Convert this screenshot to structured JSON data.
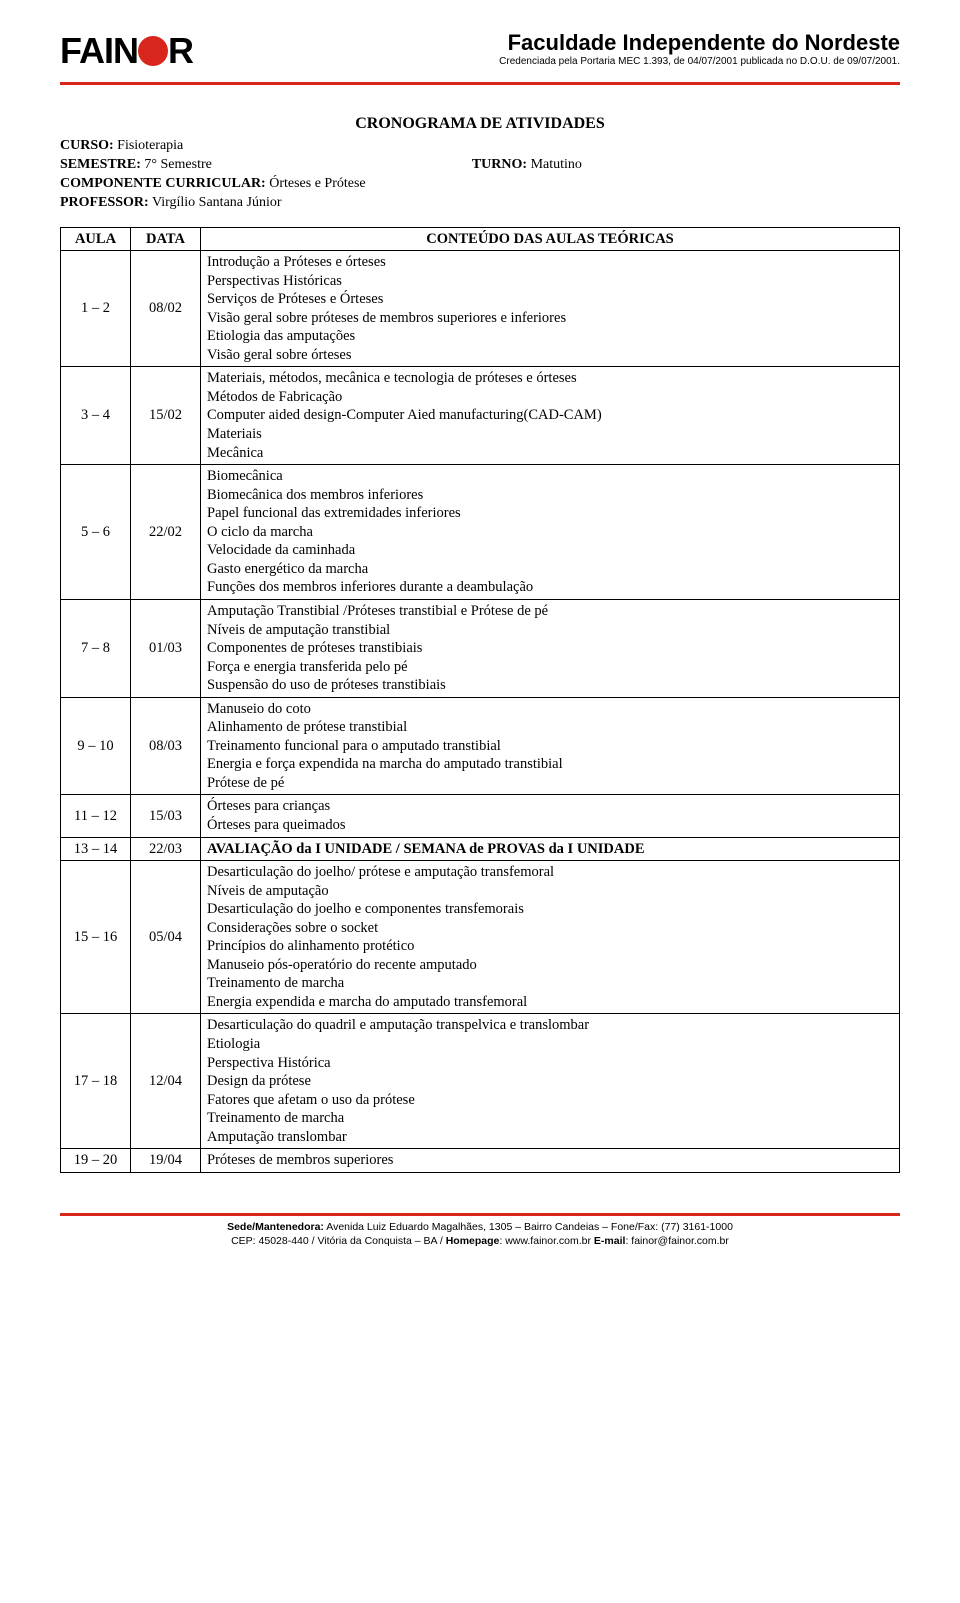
{
  "header": {
    "logo_left": "FAIN",
    "logo_right": "R",
    "institution": "Faculdade Independente do Nordeste",
    "credential": "Credenciada pela Portaria MEC 1.393, de 04/07/2001 publicada no D.O.U. de 09/07/2001."
  },
  "title": "CRONOGRAMA DE ATIVIDADES",
  "course": {
    "curso_label": "CURSO:",
    "curso_value": "Fisioterapia",
    "semestre_label": "SEMESTRE:",
    "semestre_value": "7° Semestre",
    "turno_label": "TURNO:",
    "turno_value": "Matutino",
    "componente_label": "COMPONENTE CURRICULAR:",
    "componente_value": "Órteses e Prótese",
    "professor_label": "PROFESSOR:",
    "professor_value": "Virgílio Santana Júnior"
  },
  "table": {
    "headers": {
      "aula": "AULA",
      "data": "DATA",
      "conteudo": "CONTEÚDO DAS AULAS TEÓRICAS"
    },
    "rows": [
      {
        "aula": "1 – 2",
        "data": "08/02",
        "content": [
          "Introdução a Próteses e órteses",
          "Perspectivas Históricas",
          "Serviços de Próteses e Órteses",
          "Visão geral sobre próteses de membros superiores e inferiores",
          "Etiologia das amputações",
          "Visão geral sobre órteses"
        ]
      },
      {
        "aula": "3 – 4",
        "data": "15/02",
        "content": [
          " Materiais, métodos, mecânica e tecnologia de próteses e órteses",
          "Métodos de Fabricação",
          "Computer aided design-Computer Aied manufacturing(CAD-CAM)",
          "Materiais",
          "Mecânica"
        ]
      },
      {
        "aula": "5 – 6",
        "data": "22/02",
        "content": [
          "Biomecânica",
          "Biomecânica dos membros inferiores",
          "Papel funcional das extremidades inferiores",
          "O ciclo da marcha",
          "Velocidade da caminhada",
          "Gasto energético da marcha",
          "Funções dos membros inferiores durante a deambulação"
        ]
      },
      {
        "aula": "7 – 8",
        "data": "01/03",
        "content": [
          "Amputação Transtibial /Próteses transtibial e Prótese de pé",
          "Níveis de amputação transtibial",
          "Componentes de próteses transtibiais",
          "Força e energia transferida pelo pé",
          "Suspensão do uso de próteses transtibiais"
        ]
      },
      {
        "aula": "9 – 10",
        "data": "08/03",
        "content": [
          "Manuseio do coto",
          "Alinhamento de prótese transtibial",
          "Treinamento funcional para o amputado transtibial",
          "Energia e força expendida na marcha do amputado transtibial",
          "Prótese de pé"
        ]
      },
      {
        "aula": "11 – 12",
        "data": "15/03",
        "content": [
          "Órteses para crianças",
          "Órteses para queimados"
        ]
      },
      {
        "aula": "13 – 14",
        "data": "22/03",
        "content": [
          "AVALIAÇÃO da I UNIDADE / SEMANA de PROVAS da I UNIDADE"
        ],
        "bold": true
      },
      {
        "aula": "15 – 16",
        "data": "05/04",
        "content": [
          "Desarticulação do joelho/ prótese e amputação transfemoral",
          "Níveis de amputação",
          "Desarticulação do joelho e componentes transfemorais",
          "Considerações sobre o socket",
          "Princípios do alinhamento protético",
          "Manuseio pós-operatório do recente amputado",
          "Treinamento de marcha",
          "Energia expendida e marcha do amputado transfemoral"
        ]
      },
      {
        "aula": "17 – 18",
        "data": "12/04",
        "content": [
          "Desarticulação do quadril e amputação transpelvica e translombar",
          "Etiologia",
          "Perspectiva Histórica",
          "Design da prótese",
          "Fatores que afetam o uso da prótese",
          "Treinamento de marcha",
          "Amputação translombar"
        ]
      },
      {
        "aula": "19 – 20",
        "data": "19/04",
        "content": [
          "Próteses de membros superiores"
        ]
      }
    ]
  },
  "footer": {
    "line1_label": "Sede/Mantenedora:",
    "line1_rest": " Avenida Luiz Eduardo Magalhães, 1305 – Bairro Candeias – Fone/Fax: (77) 3161-1000",
    "line2_prefix": "CEP: 45028-440 / Vitória da Conquista – BA / ",
    "homepage_label": "Homepage",
    "homepage_value": ": www.fainor.com.br  ",
    "email_label": "E-mail",
    "email_value": ": fainor@fainor.com.br"
  }
}
